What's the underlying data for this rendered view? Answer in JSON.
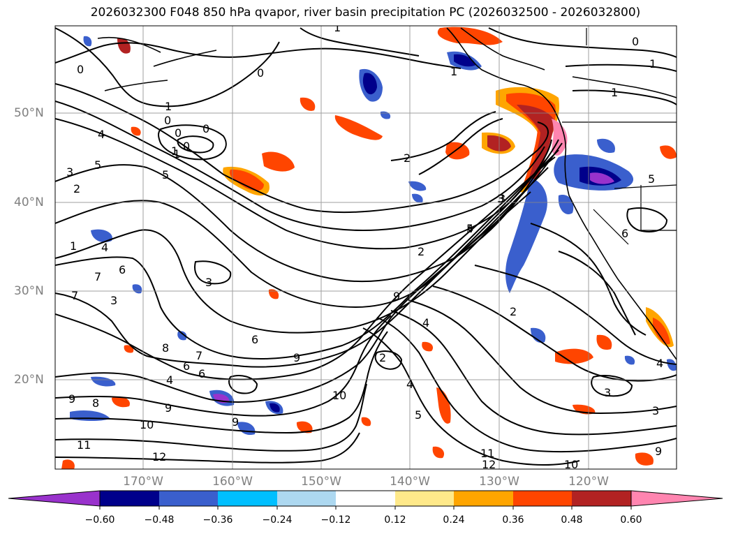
{
  "title": "2026032300 F048 850 hPa qvapor, river basin precipitation PC (2026032500 - 2026032800)",
  "lat_labels": [
    "50°N",
    "40°N",
    "30°N",
    "20°N"
  ],
  "lon_labels": [
    "170°W",
    "160°W",
    "150°W",
    "140°W",
    "130°W",
    "120°W"
  ],
  "colorbar": {
    "ticks": [
      "−0.60",
      "−0.48",
      "−0.36",
      "−0.24",
      "−0.12",
      "0.12",
      "0.24",
      "0.36",
      "0.48",
      "0.60"
    ],
    "colors": [
      "#9932cc",
      "#00008b",
      "#3a5fcd",
      "#00bfff",
      "#add8f0",
      "#ffffff",
      "#ffe98a",
      "#ffa500",
      "#ff4500",
      "#b22222",
      "#ff85b0"
    ]
  },
  "contour_labels": [
    "0",
    "1",
    "1",
    "0",
    "0",
    "0",
    "0",
    "1",
    "1",
    "1",
    "0",
    "1",
    "0",
    "2",
    "1",
    "4",
    "5",
    "5",
    "3",
    "2",
    "1",
    "4",
    "7",
    "6",
    "3",
    "3",
    "2",
    "3",
    "2",
    "3",
    "4",
    "5",
    "9",
    "4",
    "2",
    "4",
    "5",
    "6",
    "6",
    "8",
    "7",
    "6",
    "4",
    "9",
    "9",
    "10",
    "8",
    "9",
    "9",
    "10",
    "11",
    "12",
    "11",
    "12",
    "10",
    "9",
    "3",
    "3",
    "4",
    "6",
    "5",
    "7"
  ]
}
